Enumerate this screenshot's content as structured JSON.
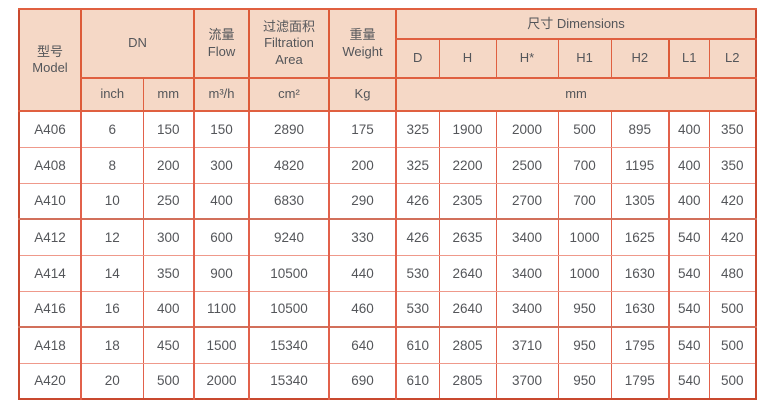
{
  "header": {
    "model": {
      "zh": "型号",
      "en": "Model"
    },
    "dn": {
      "label": "DN",
      "sub": [
        "inch",
        "mm"
      ]
    },
    "flow": {
      "zh": "流量",
      "en": "Flow",
      "unit": "m³/h"
    },
    "filtration": {
      "zh": "过滤面积",
      "en": "Filtration Area",
      "unit": "cm²"
    },
    "weight": {
      "zh": "重量",
      "en": "Weight",
      "unit": "Kg"
    },
    "dimensions": {
      "label": "尺寸 Dimensions",
      "sub": [
        "D",
        "H",
        "H*",
        "H1",
        "H2",
        "L1",
        "L2"
      ],
      "unit": "mm"
    }
  },
  "rows": [
    [
      "A406",
      "6",
      "150",
      "150",
      "2890",
      "175",
      "325",
      "1900",
      "2000",
      "500",
      "895",
      "400",
      "350"
    ],
    [
      "A408",
      "8",
      "200",
      "300",
      "4820",
      "200",
      "325",
      "2200",
      "2500",
      "700",
      "1195",
      "400",
      "350"
    ],
    [
      "A410",
      "10",
      "250",
      "400",
      "6830",
      "290",
      "426",
      "2305",
      "2700",
      "700",
      "1305",
      "400",
      "420"
    ],
    [
      "A412",
      "12",
      "300",
      "600",
      "9240",
      "330",
      "426",
      "2635",
      "3400",
      "1000",
      "1625",
      "540",
      "420"
    ],
    [
      "A414",
      "14",
      "350",
      "900",
      "10500",
      "440",
      "530",
      "2640",
      "3400",
      "1000",
      "1630",
      "540",
      "480"
    ],
    [
      "A416",
      "16",
      "400",
      "1100",
      "10500",
      "460",
      "530",
      "2640",
      "3400",
      "950",
      "1630",
      "540",
      "500"
    ],
    [
      "A418",
      "18",
      "450",
      "1500",
      "15340",
      "640",
      "610",
      "2805",
      "3710",
      "950",
      "1795",
      "540",
      "500"
    ],
    [
      "A420",
      "20",
      "500",
      "2000",
      "15340",
      "690",
      "610",
      "2805",
      "3700",
      "950",
      "1795",
      "540",
      "500"
    ]
  ],
  "colors": {
    "header_bg": "#f5d8c6",
    "border_strong": "#dd5b38",
    "border_thin_vertical": "#e2614b",
    "border_thin_horizontal": "#ef998b",
    "border_outer": "#c9492f",
    "text": "#54565a"
  }
}
